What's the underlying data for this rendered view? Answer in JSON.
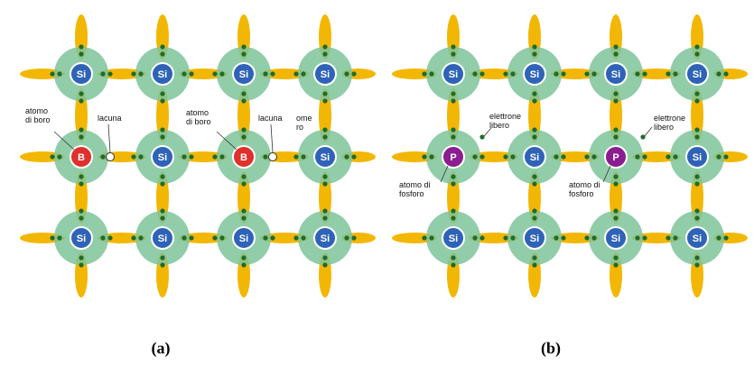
{
  "colors": {
    "bond": "#f2b705",
    "electron": "#1f6b2a",
    "halo": "#7fc49a",
    "silicon": "#2f63b8",
    "boron": "#e0302c",
    "phosphorus": "#8a1d8f",
    "hole": "#ffffff"
  },
  "atoms": {
    "silicon": "Si",
    "boron": "B",
    "phosphorus": "P"
  },
  "panels": [
    {
      "caption": "(a)",
      "dopant": "boron",
      "labels": {
        "dopant_1": [
          "atomo",
          "di boro"
        ],
        "hole_1": "lacuna",
        "dopant_2": [
          "atomo",
          "di boro"
        ],
        "hole_2": "lacuna",
        "cut_fragment": [
          "ome",
          "ro"
        ]
      }
    },
    {
      "caption": "(b)",
      "dopant": "phosphorus",
      "labels": {
        "electron_1": [
          "elettrone",
          "libero"
        ],
        "dopant_1": [
          "atomo di",
          "fosforo"
        ],
        "electron_2": [
          "elettrone",
          "libero"
        ],
        "dopant_2": [
          "atomo di",
          "fosforo"
        ]
      }
    }
  ]
}
